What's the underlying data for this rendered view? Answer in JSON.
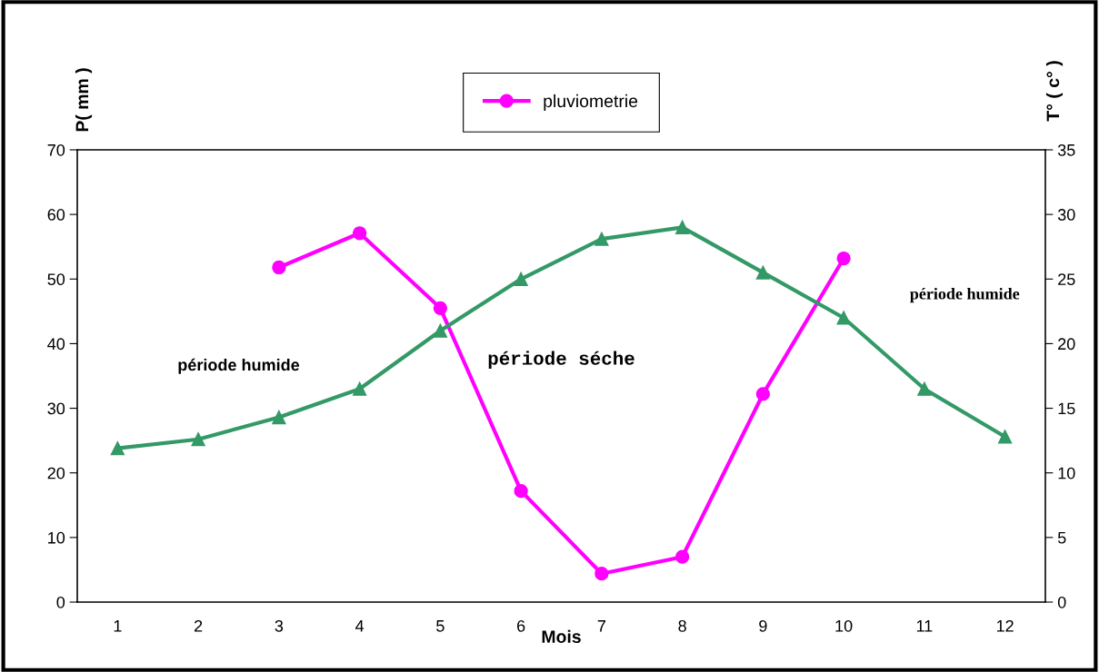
{
  "chart_data": {
    "type": "line",
    "categories": [
      "1",
      "2",
      "3",
      "4",
      "5",
      "6",
      "7",
      "8",
      "9",
      "10",
      "11",
      "12"
    ],
    "series": [
      {
        "name": "pluviometrie",
        "color": "#ff00ff",
        "marker": "circle",
        "values": [
          null,
          null,
          51.8,
          57.1,
          45.5,
          17.2,
          4.4,
          7.0,
          32.2,
          53.2,
          null,
          null
        ]
      },
      {
        "color": "#339966",
        "marker": "triangle",
        "axis": "y2",
        "values": [
          11.9,
          12.6,
          14.3,
          16.5,
          21.0,
          25.0,
          28.1,
          29.0,
          25.5,
          22.0,
          16.5,
          12.8
        ]
      }
    ],
    "xlabel": "Mois",
    "ylabel": "P( mm )",
    "y2label": "T° ( c° )",
    "ylim": [
      0,
      70
    ],
    "yticks": [
      0,
      10,
      20,
      30,
      40,
      50,
      60,
      70
    ],
    "y2lim": [
      0,
      35
    ],
    "y2ticks": [
      0,
      5,
      10,
      15,
      20,
      25,
      30,
      35
    ],
    "annotations": [
      "période humide",
      "période séche",
      "période humide"
    ],
    "legend": "top",
    "grid": false,
    "line_style": "solid"
  }
}
